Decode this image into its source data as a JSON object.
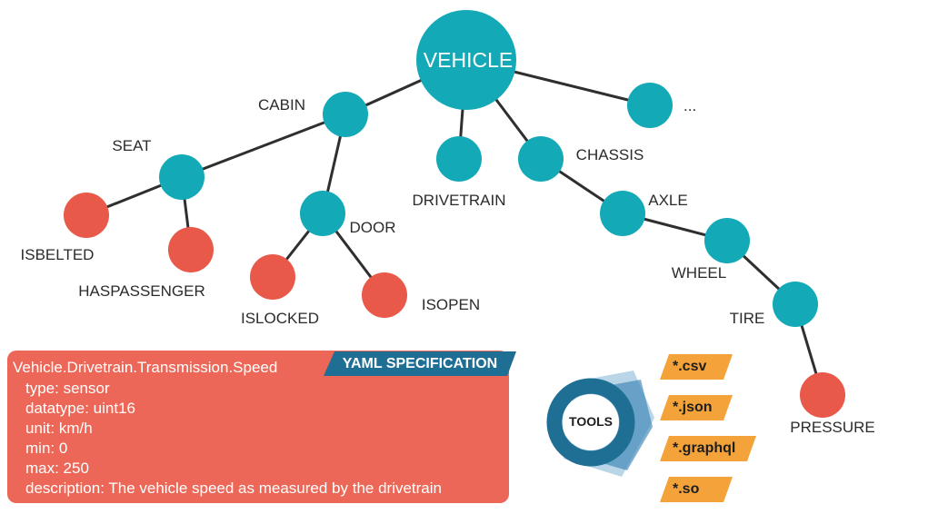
{
  "tree": {
    "root": "VEHICLE",
    "nodes": {
      "cabin": "CABIN",
      "more": "...",
      "seat": "SEAT",
      "drivetrain": "DRIVETRAIN",
      "chassis": "CHASSIS",
      "isbelted": "ISBELTED",
      "haspassenger": "HASPASSENGER",
      "door": "DOOR",
      "axle": "AXLE",
      "islocked": "ISLOCKED",
      "isopen": "ISOPEN",
      "wheel": "WHEEL",
      "tire": "TIRE",
      "pressure": "PRESSURE"
    }
  },
  "spec": {
    "badge": "YAML SPECIFICATION",
    "path": "Vehicle.Drivetrain.Transmission.Speed",
    "lines": [
      "type: sensor",
      "datatype: uint16",
      "unit: km/h",
      "min: 0",
      "max: 250",
      "description: The vehicle speed as measured by the drivetrain"
    ]
  },
  "tools": {
    "label": "TOOLS",
    "outputs": [
      "*.csv",
      "*.json",
      "*.graphql",
      "*.so"
    ]
  },
  "colors": {
    "branch": "#13a9b6",
    "leaf": "#e8594a",
    "card": "#ec6757",
    "badge": "#1f6f95",
    "tag": "#f4a33a"
  }
}
